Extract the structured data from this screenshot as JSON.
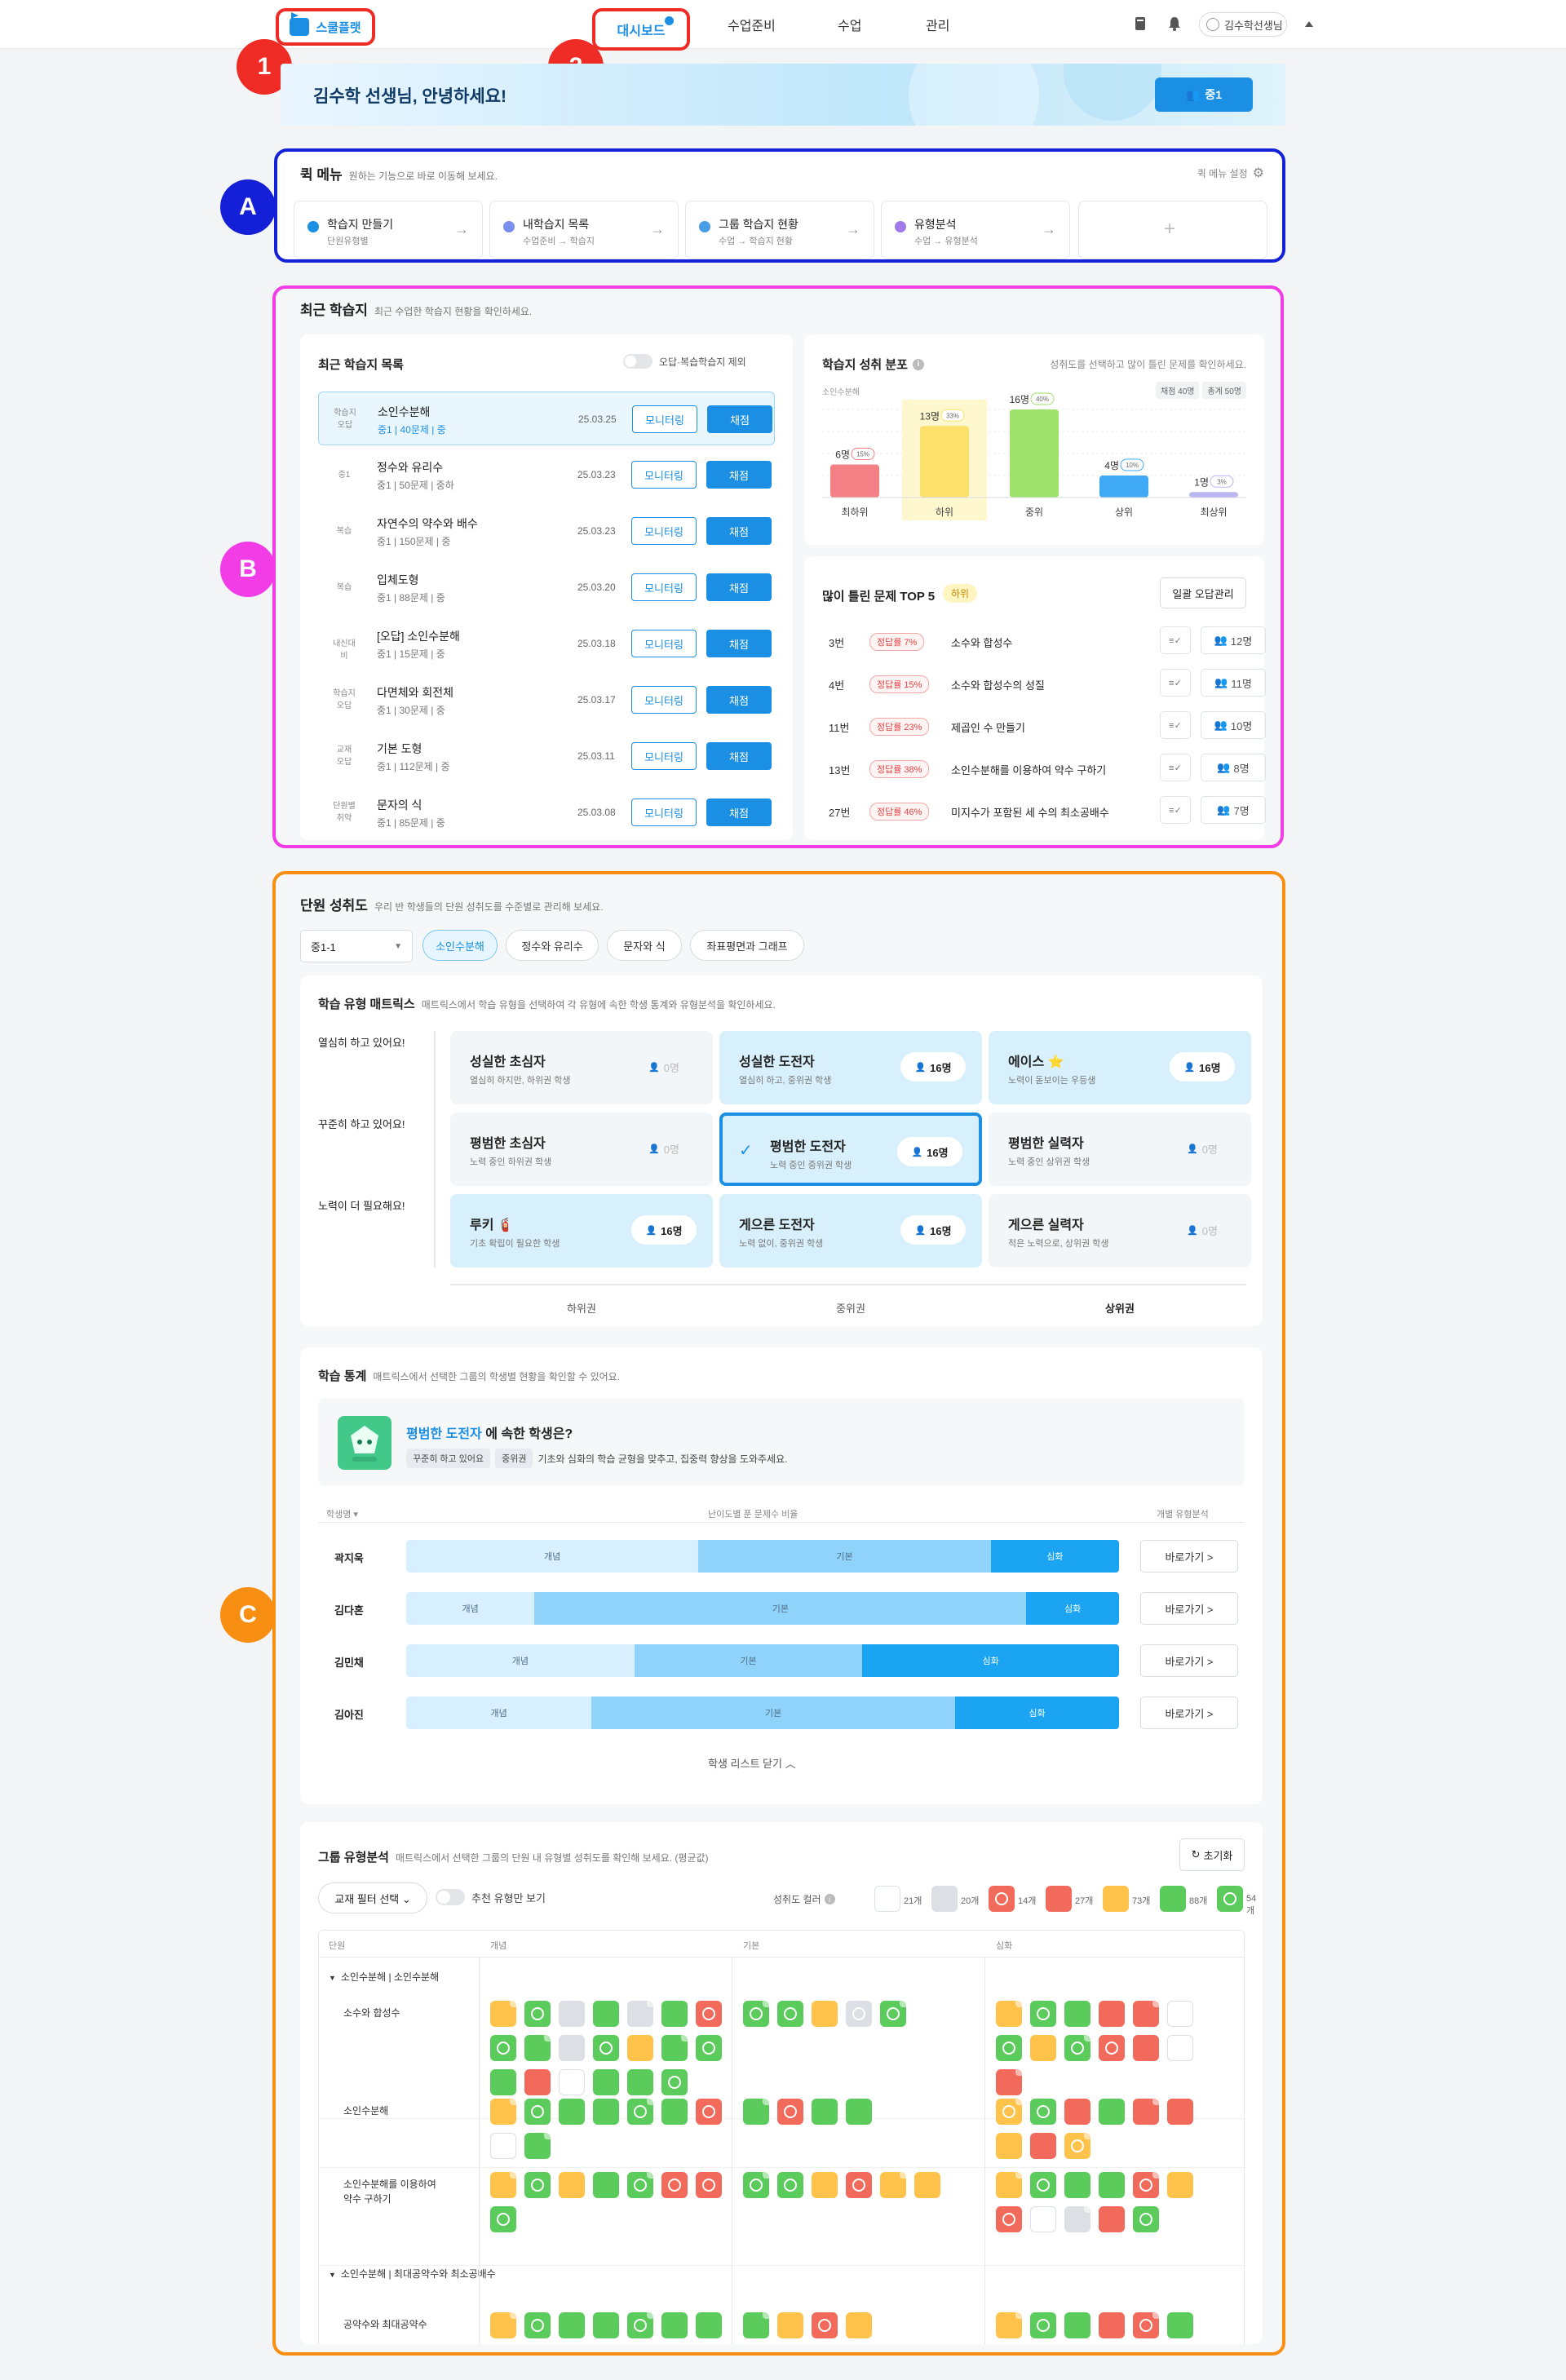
{
  "nav": {
    "logo": "스쿨플랫",
    "links": [
      "대시보드",
      "수업준비",
      "수업",
      "관리"
    ],
    "user": "김수학선생님"
  },
  "annotations": {
    "a": "1",
    "b": "2",
    "c": "A",
    "d": "B",
    "e": "C"
  },
  "banner": {
    "greeting": "김수학 선생님, 안녕하세요!",
    "class_button": "중1"
  },
  "quick": {
    "title": "퀵 메뉴",
    "desc": "원하는 기능으로 바로 이동해 보세요.",
    "settings": "퀵 메뉴 설정",
    "items": [
      {
        "name": "학습지 만들기",
        "path": "단원유형별",
        "color": "#1a8fe3"
      },
      {
        "name": "내학습지 목록",
        "path": "수업준비 → 학습지",
        "color": "#7b8ff0"
      },
      {
        "name": "그룹 학습지 현황",
        "path": "수업 → 학습지 현황",
        "color": "#4b9ce8"
      },
      {
        "name": "유형분석",
        "path": "수업 → 유형분석",
        "color": "#a07be8"
      }
    ],
    "add": "+"
  },
  "recent": {
    "title": "최근 학습지",
    "desc": "최근 수업한 학습지 현황을 확인하세요.",
    "list_title": "최근 학습지 목록",
    "toggle_label": "오답·복습학습지 제외",
    "monitor": "모니터링",
    "grade": "채점",
    "rows": [
      {
        "tag1": "학습지",
        "tag2": "오답",
        "name": "소인수분해",
        "meta": "중1 | 40문제 | 중",
        "date": "25.03.25"
      },
      {
        "tag1": "",
        "tag2": "중1",
        "name": "정수와 유리수",
        "meta": "중1 | 50문제 | 중하",
        "date": "25.03.23"
      },
      {
        "tag1": "",
        "tag2": "복습",
        "name": "자연수의 약수와 배수",
        "meta": "중1 | 150문제 | 중",
        "date": "25.03.23"
      },
      {
        "tag1": "",
        "tag2": "복습",
        "name": "입체도형",
        "meta": "중1 | 88문제 | 중",
        "date": "25.03.20"
      },
      {
        "tag1": "",
        "tag2": "내신대비",
        "name": "[오답] 소인수분해",
        "meta": "중1 | 15문제 | 중",
        "date": "25.03.18"
      },
      {
        "tag1": "학습지",
        "tag2": "오답",
        "name": "다면체와 회전체",
        "meta": "중1 | 30문제 | 중",
        "date": "25.03.17"
      },
      {
        "tag1": "교재",
        "tag2": "오답",
        "name": "기본 도형",
        "meta": "중1 | 112문제 | 중",
        "date": "25.03.11"
      },
      {
        "tag1": "단원별",
        "tag2": "취약",
        "name": "문자의 식",
        "meta": "중1 | 85문제 | 중",
        "date": "25.03.08"
      }
    ]
  },
  "chart_data": {
    "type": "bar",
    "title": "학습지 성취 분포",
    "subtitle": "성취도를 선택하고 많이 틀린 문제를 확인하세요.",
    "unit_label": "소인수분해",
    "chips": [
      "채점 40명",
      "총계 50명"
    ],
    "categories": [
      "최하위",
      "하위",
      "중위",
      "상위",
      "최상위"
    ],
    "values": [
      6,
      13,
      16,
      4,
      1
    ],
    "value_labels": [
      "6명",
      "13명",
      "16명",
      "4명",
      "1명"
    ],
    "percents": [
      "15%",
      "33%",
      "40%",
      "10%",
      "3%"
    ],
    "ylim": [
      0,
      16
    ],
    "selected": "하위",
    "colors": [
      "#f47f84",
      "#fbe06b",
      "#9ee26b",
      "#3fa9f5",
      "#b9b6f2"
    ]
  },
  "wrong": {
    "title": "많이 틀린 문제 TOP 5",
    "badge": "하위",
    "button": "일괄 오답관리",
    "icon_text": "≡✓",
    "items": [
      {
        "no": "3번",
        "rate": "정답률 7%",
        "title": "소수와 합성수",
        "count": "12명"
      },
      {
        "no": "4번",
        "rate": "정답률 15%",
        "title": "소수와 합성수의 성질",
        "count": "11명"
      },
      {
        "no": "11번",
        "rate": "정답률 23%",
        "title": "제곱인 수 만들기",
        "count": "10명"
      },
      {
        "no": "13번",
        "rate": "정답률 38%",
        "title": "소인수분해를 이용하여 약수 구하기",
        "count": "8명"
      },
      {
        "no": "27번",
        "rate": "정답률 46%",
        "title": "미지수가 포함된 세 수의 최소공배수",
        "count": "7명"
      }
    ]
  },
  "unit": {
    "title": "단원 성취도",
    "desc": "우리 반 학생들의 단원 성취도를 수준별로 관리해 보세요.",
    "select": "중1-1",
    "chips": [
      "소인수분해",
      "정수와 유리수",
      "문자와 식",
      "좌표평면과 그래프"
    ]
  },
  "matrix": {
    "title": "학습 유형 매트릭스",
    "desc": "매트릭스에서 학습 유형을 선택하여 각 유형에 속한 학생 통계와 유형분석을 확인하세요.",
    "rows": [
      "열심히 하고 있어요!",
      "꾸준히 하고 있어요!",
      "노력이 더 필요해요!"
    ],
    "cols": [
      "하위권",
      "중위권",
      "상위권"
    ],
    "cells": [
      {
        "t": "성실한 초심자",
        "d": "열심히 하지만, 하위권 학생",
        "n": "0명"
      },
      {
        "t": "성실한 도전자",
        "d": "열심히 하고, 중위권 학생",
        "n": "16명"
      },
      {
        "t": "에이스 ⭐",
        "d": "노력이 돋보이는 우등생",
        "n": "16명"
      },
      {
        "t": "평범한 초심자",
        "d": "노력 중인 하위권 학생",
        "n": "0명"
      },
      {
        "t": "평범한 도전자",
        "d": "노력 중인 중위권 학생",
        "n": "16명"
      },
      {
        "t": "평범한 실력자",
        "d": "노력 중인 상위권 학생",
        "n": "0명"
      },
      {
        "t": "루키 🧯",
        "d": "기초 확립이 필요한 학생",
        "n": "16명"
      },
      {
        "t": "게으른 도전자",
        "d": "노력 없이, 중위권 학생",
        "n": "16명"
      },
      {
        "t": "게으른 실력자",
        "d": "적은 노력으로, 상위권 학생",
        "n": "0명"
      }
    ]
  },
  "stats": {
    "title": "학습 통계",
    "desc": "매트릭스에서 선택한 그룹의 학생별 현황을 확인할 수 있어요.",
    "group": "평범한 도전자",
    "group_suffix": "에 속한 학생은?",
    "tags": [
      "꾸준히 하고 있어요",
      "중위권"
    ],
    "advice": "기초와 심화의 학습 균형을 맞추고, 집중력 향상을 도와주세요.",
    "col_name": "학생명 ▾",
    "col_ratio": "난이도별 푼 문제수 비율",
    "col_type": "개별 유형분석",
    "go": "바로가기 >",
    "close": "학생 리스트 닫기",
    "students": [
      {
        "name": "곽지욱",
        "a": 41,
        "b": 41,
        "c": 18
      },
      {
        "name": "김다혼",
        "a": 18,
        "b": 69,
        "c": 13
      },
      {
        "name": "김민채",
        "a": 32,
        "b": 32,
        "c": 36
      },
      {
        "name": "김아진",
        "a": 26,
        "b": 51,
        "c": 23
      }
    ],
    "seg": [
      "개념",
      "기본",
      "심화"
    ]
  },
  "group": {
    "title": "그룹 유형분석",
    "desc": "매트릭스에서 선택한 그룹의 단원 내 유형별 성취도를 확인해 보세요. (평균값)",
    "reset": "초기화",
    "filter": "교재 필터 선택 ⌄",
    "toggle": "추천 유형만 보기",
    "legend_label": "성취도 컬러",
    "legend": [
      {
        "c": "w",
        "n": "21개"
      },
      {
        "c": "l",
        "n": "20개"
      },
      {
        "c": "r",
        "n": "14개",
        "f": true
      },
      {
        "c": "r",
        "n": "27개"
      },
      {
        "c": "y",
        "n": "73개"
      },
      {
        "c": "g",
        "n": "88개"
      },
      {
        "c": "g",
        "n": "54개",
        "f": true
      }
    ],
    "cols": [
      "단원",
      "개념",
      "기본",
      "심화"
    ],
    "section1": "소인수분해 | 소인수분해",
    "section2": "소인수분해 | 최대공약수와 최소공배수",
    "units": [
      {
        "name": "소수와 합성수"
      },
      {
        "name": "소인수분해"
      },
      {
        "name": "소인수분해를 이용하여\n약수 구하기"
      },
      {
        "name": "공약수와 최대공약수"
      }
    ]
  }
}
